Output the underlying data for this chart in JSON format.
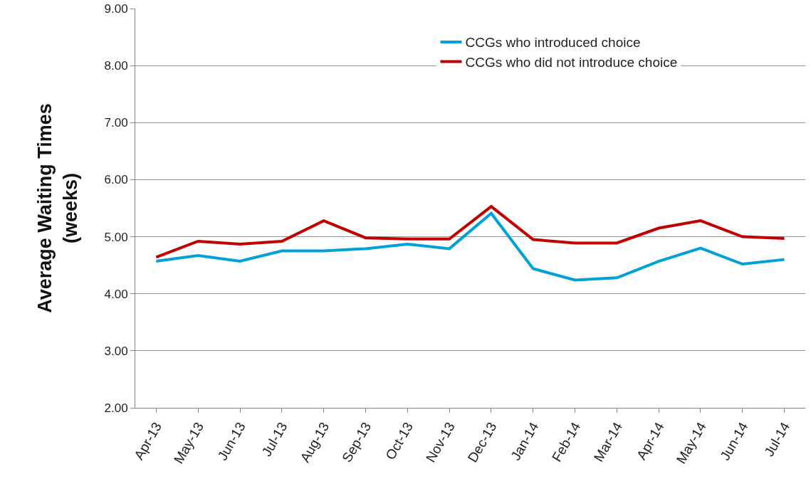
{
  "chart_data": {
    "type": "line",
    "ylabel": "Average Waiting Times\n(weeks)",
    "categories": [
      "Apr-13",
      "May-13",
      "Jun-13",
      "Jul-13",
      "Aug-13",
      "Sep-13",
      "Oct-13",
      "Nov-13",
      "Dec-13",
      "Jan-14",
      "Feb-14",
      "Mar-14",
      "Apr-14",
      "May-14",
      "Jun-14",
      "Jul-14"
    ],
    "series": [
      {
        "name": "CCGs who introduced choice",
        "color": "#00a0d8",
        "values": [
          4.57,
          4.67,
          4.57,
          4.75,
          4.75,
          4.79,
          4.87,
          4.79,
          5.41,
          4.44,
          4.24,
          4.28,
          4.57,
          4.8,
          4.52,
          4.6
        ]
      },
      {
        "name": "CCGs who did not introduce choice",
        "color": "#c00000",
        "values": [
          4.64,
          4.92,
          4.87,
          4.92,
          5.28,
          4.98,
          4.96,
          4.96,
          5.53,
          4.95,
          4.89,
          4.89,
          5.15,
          5.28,
          5.0,
          4.97
        ]
      }
    ],
    "ylim": [
      2,
      9
    ],
    "yticks": [
      {
        "value": 2,
        "label": "2.00"
      },
      {
        "value": 3,
        "label": "3.00"
      },
      {
        "value": 4,
        "label": "4.00"
      },
      {
        "value": 5,
        "label": "5.00"
      },
      {
        "value": 6,
        "label": "6.00"
      },
      {
        "value": 7,
        "label": "7.00"
      },
      {
        "value": 8,
        "label": "8.00"
      },
      {
        "value": 9,
        "label": "9.00"
      }
    ],
    "grid": "y",
    "legend": "top right",
    "line_style": "solid",
    "marker": "none"
  }
}
